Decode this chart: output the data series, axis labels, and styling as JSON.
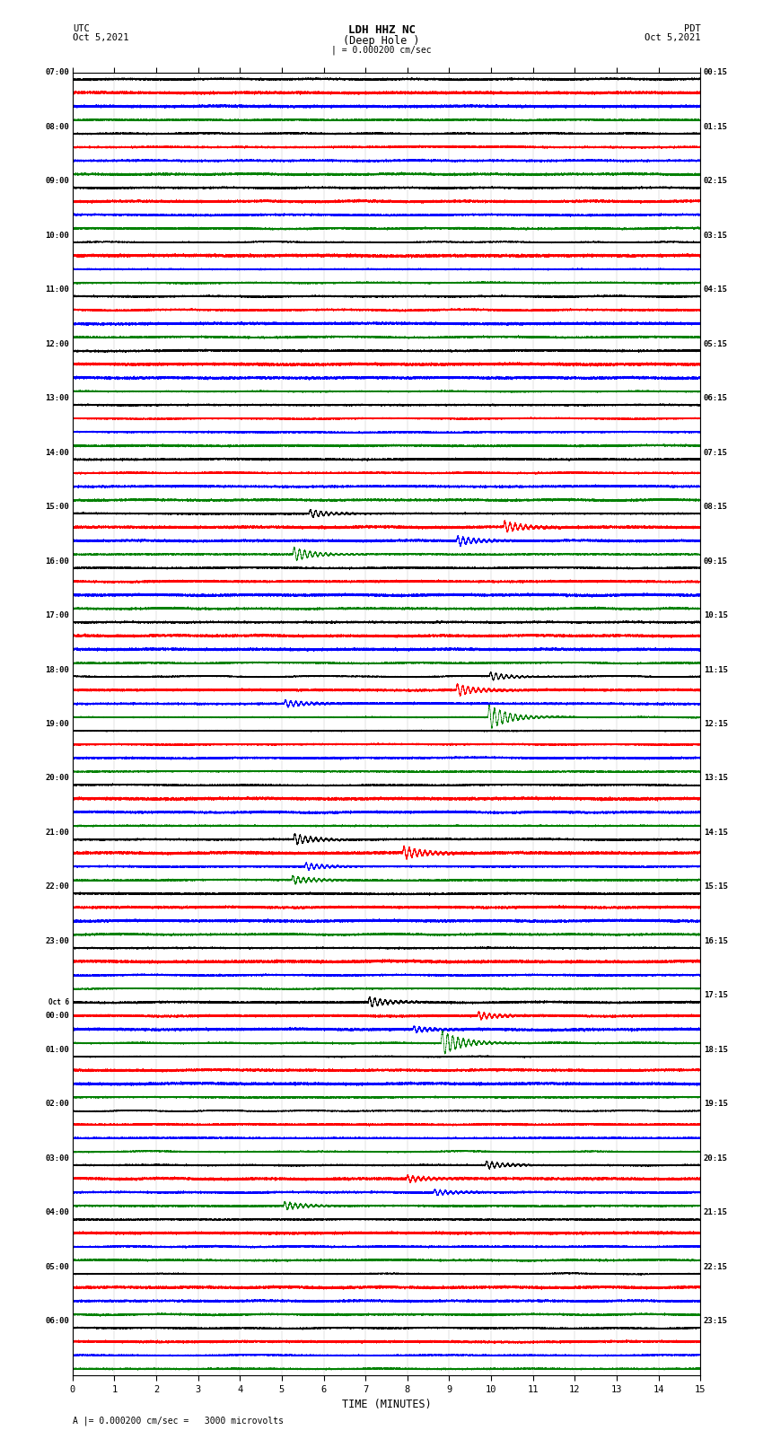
{
  "title_center_line1": "LDH HHZ NC",
  "title_center_line2": "(Deep Hole )",
  "title_left_line1": "UTC",
  "title_left_line2": "Oct 5,2021",
  "title_right_line1": "PDT",
  "title_right_line2": "Oct 5,2021",
  "scale_label": "| = 0.000200 cm/sec",
  "bottom_label": "A |= 0.000200 cm/sec =   3000 microvolts",
  "xlabel": "TIME (MINUTES)",
  "xticks": [
    0,
    1,
    2,
    3,
    4,
    5,
    6,
    7,
    8,
    9,
    10,
    11,
    12,
    13,
    14,
    15
  ],
  "time_minutes": 15,
  "sample_rate": 50,
  "colors": [
    "black",
    "red",
    "blue",
    "green"
  ],
  "background": "white",
  "utc_labels": [
    "07:00",
    "08:00",
    "09:00",
    "10:00",
    "11:00",
    "12:00",
    "13:00",
    "14:00",
    "15:00",
    "16:00",
    "17:00",
    "18:00",
    "19:00",
    "20:00",
    "21:00",
    "22:00",
    "23:00",
    "Oct 6\n00:00",
    "01:00",
    "02:00",
    "03:00",
    "04:00",
    "05:00",
    "06:00"
  ],
  "pdt_labels": [
    "00:15",
    "01:15",
    "02:15",
    "03:15",
    "04:15",
    "05:15",
    "06:15",
    "07:15",
    "08:15",
    "09:15",
    "10:15",
    "11:15",
    "12:15",
    "13:15",
    "14:15",
    "15:15",
    "16:15",
    "17:15",
    "18:15",
    "19:15",
    "20:15",
    "21:15",
    "22:15",
    "23:15"
  ],
  "n_hours": 24,
  "traces_per_hour": 4,
  "fig_width": 8.5,
  "fig_height": 16.13,
  "trace_amplitude": 0.38,
  "noise_base": 0.12,
  "event_hours": [
    8,
    11,
    14,
    17,
    20
  ],
  "event_hour_green": [
    11,
    17
  ]
}
